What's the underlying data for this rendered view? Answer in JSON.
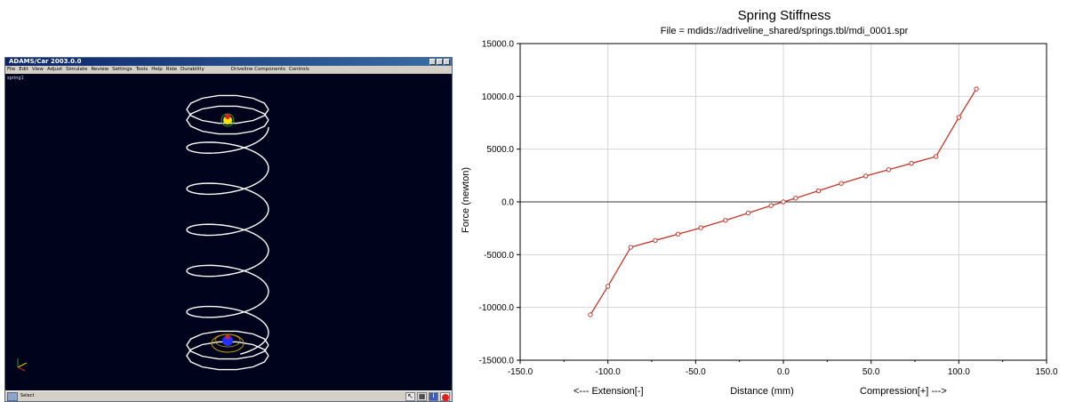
{
  "app": {
    "title": "ADAMS/Car 2003.0.0",
    "menu": [
      "File",
      "Edit",
      "View",
      "Adjust",
      "Simulate",
      "Review",
      "Settings",
      "Tools",
      "Help",
      "Ride",
      "Durability"
    ],
    "menu_right": [
      "Driveline Components",
      "Controls"
    ],
    "model_label": "spring1",
    "status_text": "Select",
    "tools": [
      {
        "icon": "arrow-pointer-icon",
        "glyph": "↖"
      },
      {
        "icon": "model-tree-icon",
        "glyph": "▦"
      },
      {
        "icon": "info-icon",
        "glyph": "i"
      },
      {
        "icon": "stop-icon",
        "glyph": ""
      }
    ],
    "colors": {
      "viewport_bg": "#00031c",
      "spring": "#ffffff",
      "seat_top": "#ffe300",
      "seat_bottom": "#2030ff"
    }
  },
  "chart_data": {
    "type": "line",
    "title": "Spring Stiffness",
    "subtitle": "File = mdids://adriveline_shared/springs.tbl/mdi_0001.spr",
    "xlabel": "Distance (mm)",
    "xlabel_left": "<--- Extension[-]",
    "xlabel_right": "Compression[+] --->",
    "ylabel": "Force (newton)",
    "xlim": [
      -150,
      150
    ],
    "ylim": [
      -15000,
      15000
    ],
    "xticks": [
      -150,
      -100,
      -50,
      0,
      50,
      100,
      150
    ],
    "yticks": [
      -15000,
      -10000,
      -5000,
      0,
      5000,
      10000,
      15000
    ],
    "xtick_labels": [
      "-150.0",
      "-100.0",
      "-50.0",
      "0.0",
      "50.0",
      "100.0",
      "150.0"
    ],
    "ytick_labels": [
      "-15000.0",
      "-10000.0",
      "-5000.0",
      "0.0",
      "5000.0",
      "10000.0",
      "15000.0"
    ],
    "grid": true,
    "color": "#c0392b",
    "x": [
      -110,
      -100,
      -87,
      -73,
      -60,
      -47,
      -33,
      -20,
      -7,
      0,
      7,
      20,
      33,
      47,
      60,
      73,
      87,
      100,
      110
    ],
    "y": [
      -10700,
      -8000,
      -4300,
      -3650,
      -3050,
      -2450,
      -1750,
      -1050,
      -350,
      0,
      350,
      1050,
      1750,
      2450,
      3050,
      3650,
      4300,
      8000,
      10700
    ]
  }
}
